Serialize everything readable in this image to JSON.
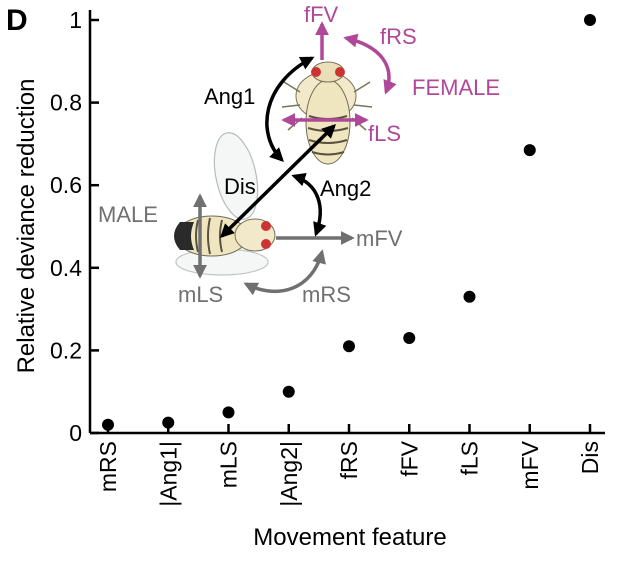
{
  "panel_label": "D",
  "chart_data": {
    "type": "scatter",
    "title": "",
    "xlabel": "Movement feature",
    "ylabel": "Relative deviance reduction",
    "categories": [
      "mRS",
      "|Ang1|",
      "mLS",
      "|Ang2|",
      "fRS",
      "fFV",
      "fLS",
      "mFV",
      "Dis"
    ],
    "values": [
      0.02,
      0.025,
      0.05,
      0.1,
      0.21,
      0.23,
      0.33,
      0.685,
      1.0
    ],
    "ylim": [
      0,
      1
    ],
    "yticks": [
      0,
      0.2,
      0.4,
      0.6,
      0.8,
      1
    ],
    "ytick_labels": [
      "0",
      "0.2",
      "0.4",
      "0.6",
      "0.8",
      "1"
    ],
    "grid": false,
    "marker_color": "#000000"
  },
  "inset": {
    "male_label": "MALE",
    "female_label": "FEMALE",
    "labels": {
      "fFV": "fFV",
      "fRS": "fRS",
      "fLS": "fLS",
      "Ang1": "Ang1",
      "Ang2": "Ang2",
      "Dis": "Dis",
      "mFV": "mFV",
      "mLS": "mLS",
      "mRS": "mRS"
    },
    "colors": {
      "female": "#b0489a",
      "male": "#707070",
      "relative": "#000000"
    },
    "icons": [
      "female-fly-icon",
      "male-fly-icon"
    ]
  }
}
